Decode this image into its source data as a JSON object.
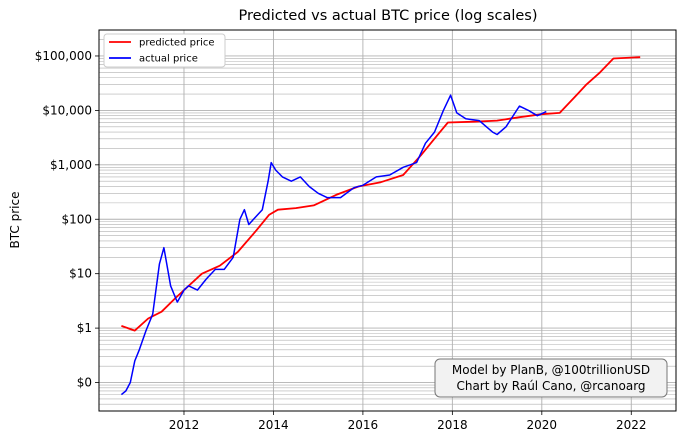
{
  "chart_data": {
    "type": "line",
    "title": "Predicted vs actual BTC price (log scales)",
    "xlabel": "",
    "ylabel": "BTC price",
    "y_scale": "log",
    "xlim": [
      2010.1,
      2023.0
    ],
    "ylim": [
      0.03,
      300000
    ],
    "x_ticks": [
      2012,
      2014,
      2016,
      2018,
      2020,
      2022
    ],
    "x_tick_labels": [
      "2012",
      "2014",
      "2016",
      "2018",
      "2020",
      "2022"
    ],
    "y_ticks": [
      0.1,
      1,
      10,
      100,
      1000,
      10000,
      100000
    ],
    "y_tick_labels": [
      "$0",
      "$1",
      "$10",
      "$100",
      "$1,000",
      "$10,000",
      "$100,000"
    ],
    "grid": true,
    "legend_position": "top-left",
    "series": [
      {
        "name": "predicted price",
        "color": "#ff0000",
        "x": [
          2010.6,
          2010.9,
          2011.2,
          2011.5,
          2011.8,
          2012.0,
          2012.4,
          2012.8,
          2013.2,
          2013.6,
          2013.9,
          2014.1,
          2014.5,
          2014.9,
          2015.4,
          2015.9,
          2016.4,
          2016.9,
          2017.3,
          2017.7,
          2017.9,
          2018.5,
          2019.0,
          2019.5,
          2020.0,
          2020.4,
          2020.8,
          2021.0,
          2021.3,
          2021.6,
          2022.2
        ],
        "y": [
          1.1,
          0.9,
          1.5,
          2.0,
          3.5,
          5.0,
          10,
          14,
          25,
          60,
          120,
          150,
          160,
          180,
          280,
          400,
          480,
          650,
          1500,
          3800,
          6000,
          6200,
          6500,
          7500,
          8500,
          9000,
          20000,
          30000,
          50000,
          90000,
          95000
        ]
      },
      {
        "name": "actual price",
        "color": "#0000ff",
        "x": [
          2010.6,
          2010.7,
          2010.8,
          2010.9,
          2011.0,
          2011.15,
          2011.3,
          2011.45,
          2011.55,
          2011.7,
          2011.85,
          2012.0,
          2012.1,
          2012.3,
          2012.5,
          2012.7,
          2012.9,
          2013.1,
          2013.25,
          2013.35,
          2013.45,
          2013.6,
          2013.75,
          2013.88,
          2013.95,
          2014.05,
          2014.2,
          2014.4,
          2014.6,
          2014.8,
          2015.0,
          2015.2,
          2015.5,
          2015.8,
          2016.0,
          2016.3,
          2016.6,
          2016.9,
          2017.2,
          2017.4,
          2017.6,
          2017.8,
          2017.96,
          2018.1,
          2018.3,
          2018.6,
          2018.9,
          2019.0,
          2019.2,
          2019.4,
          2019.5,
          2019.7,
          2019.9,
          2020.1
        ],
        "y": [
          0.06,
          0.07,
          0.1,
          0.25,
          0.4,
          0.9,
          1.8,
          15,
          30,
          6,
          3,
          5,
          6,
          5,
          8,
          12,
          12,
          20,
          100,
          150,
          80,
          110,
          150,
          500,
          1100,
          800,
          600,
          500,
          600,
          400,
          300,
          250,
          250,
          380,
          420,
          600,
          650,
          900,
          1100,
          2500,
          4000,
          10000,
          19000,
          9000,
          7000,
          6500,
          4000,
          3600,
          5000,
          9000,
          12000,
          10000,
          8000,
          9500
        ]
      }
    ],
    "annotation_lines": [
      "Model by PlanB, @100trillionUSD",
      "Chart by Raúl Cano, @rcanoarg"
    ]
  }
}
